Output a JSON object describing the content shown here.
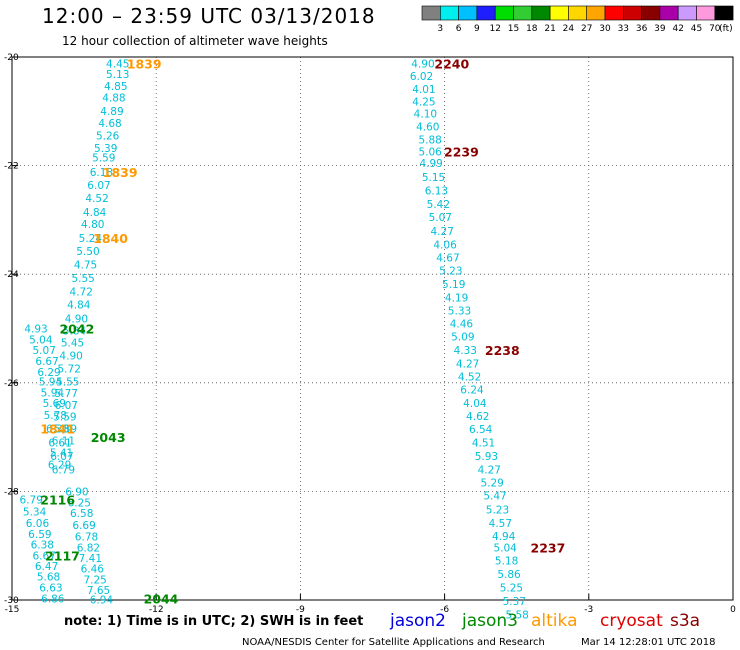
{
  "header": {
    "title": "12:00 – 23:59 UTC 03/13/2018",
    "subtitle": "12 hour collection of altimeter wave heights"
  },
  "colorbar": {
    "unit": "(ft)",
    "ticks": [
      "3",
      "6",
      "9",
      "12",
      "15",
      "18",
      "21",
      "24",
      "27",
      "30",
      "33",
      "36",
      "39",
      "42",
      "45",
      "70"
    ],
    "colors": [
      "#808080",
      "#00eeee",
      "#00bfff",
      "#1e1eff",
      "#00dd00",
      "#32cd32",
      "#008800",
      "#ffff00",
      "#ffd700",
      "#ffa500",
      "#ff0000",
      "#cc0000",
      "#880000",
      "#aa00aa",
      "#cc99ff",
      "#ff99dd",
      "#000000"
    ]
  },
  "footer": {
    "note": "note: 1) Time is in UTC; 2) SWH is in feet",
    "credit": "NOAA/NESDIS Center for Satellite Applications and Research",
    "timestamp": "Mar 14 12:28:01 UTC 2018"
  },
  "legend": [
    {
      "name": "jason2",
      "color": "#0000dd"
    },
    {
      "name": "jason3",
      "color": "#008800"
    },
    {
      "name": "altika",
      "color": "#ff9900"
    },
    {
      "name": "cryosat",
      "color": "#dd0000"
    },
    {
      "name": "s3a",
      "color": "#880000"
    }
  ],
  "chart_data": {
    "type": "scatter",
    "title": "12 hour collection of altimeter wave heights",
    "xlim": [
      -15,
      0
    ],
    "ylim": [
      -30,
      -20
    ],
    "x_ticks": [
      -15,
      -12,
      -9,
      -6,
      -3,
      0
    ],
    "y_ticks": [
      -20,
      -22,
      -24,
      -26,
      -28,
      -30
    ],
    "grid": true,
    "value_color": "#00bfd8",
    "series": [
      {
        "name": "left-track-a",
        "points": [
          {
            "x": -12.8,
            "y": -20.12,
            "v": "4.45"
          },
          {
            "x": -12.8,
            "y": -20.31,
            "v": "5.13"
          },
          {
            "x": -12.84,
            "y": -20.53,
            "v": "4.85"
          },
          {
            "x": -12.88,
            "y": -20.75,
            "v": "4.88"
          },
          {
            "x": -12.92,
            "y": -20.99,
            "v": "4.89"
          },
          {
            "x": -12.96,
            "y": -21.22,
            "v": "4.68"
          },
          {
            "x": -13.01,
            "y": -21.45,
            "v": "5.26"
          },
          {
            "x": -13.05,
            "y": -21.68,
            "v": "5.39"
          },
          {
            "x": -13.09,
            "y": -21.85,
            "v": "5.59"
          },
          {
            "x": -13.14,
            "y": -22.12,
            "v": "6.18"
          },
          {
            "x": -13.19,
            "y": -22.36,
            "v": "6.07"
          },
          {
            "x": -13.23,
            "y": -22.6,
            "v": "4.52"
          },
          {
            "x": -13.28,
            "y": -22.85,
            "v": "4.84"
          },
          {
            "x": -13.32,
            "y": -23.08,
            "v": "4.80"
          },
          {
            "x": -13.37,
            "y": -23.33,
            "v": "5.24"
          },
          {
            "x": -13.42,
            "y": -23.57,
            "v": "5.50"
          },
          {
            "x": -13.47,
            "y": -23.82,
            "v": "4.75"
          },
          {
            "x": -13.52,
            "y": -24.07,
            "v": "5.55"
          },
          {
            "x": -13.56,
            "y": -24.32,
            "v": "4.72"
          },
          {
            "x": -13.61,
            "y": -24.56,
            "v": "4.84"
          },
          {
            "x": -13.66,
            "y": -24.82,
            "v": "4.90"
          },
          {
            "x": -13.7,
            "y": -25.04,
            "v": "5.84"
          },
          {
            "x": -13.74,
            "y": -25.26,
            "v": "5.45"
          },
          {
            "x": -13.77,
            "y": -25.5,
            "v": "4.90"
          },
          {
            "x": -13.81,
            "y": -25.74,
            "v": "5.72"
          },
          {
            "x": -13.84,
            "y": -25.98,
            "v": "5.55"
          },
          {
            "x": -13.87,
            "y": -26.19,
            "v": "5.77"
          },
          {
            "x": -13.87,
            "y": -26.41,
            "v": "6.07"
          },
          {
            "x": -13.9,
            "y": -26.62,
            "v": "5.59"
          },
          {
            "x": -13.89,
            "y": -26.84,
            "v": "5.89"
          },
          {
            "x": -13.93,
            "y": -27.06,
            "v": "6.11"
          },
          {
            "x": -13.97,
            "y": -27.28,
            "v": "5.41"
          },
          {
            "x": -14.01,
            "y": -27.5,
            "v": "6.29"
          }
        ]
      },
      {
        "name": "left-track-b",
        "points": [
          {
            "x": -14.5,
            "y": -25.0,
            "v": "4.93"
          },
          {
            "x": -14.4,
            "y": -25.2,
            "v": "5.04"
          },
          {
            "x": -14.33,
            "y": -25.4,
            "v": "5.07"
          },
          {
            "x": -14.27,
            "y": -25.6,
            "v": "6.67"
          },
          {
            "x": -14.23,
            "y": -25.8,
            "v": "6.29"
          },
          {
            "x": -14.2,
            "y": -25.98,
            "v": "5.94"
          },
          {
            "x": -14.16,
            "y": -26.18,
            "v": "5.94"
          },
          {
            "x": -14.12,
            "y": -26.37,
            "v": "5.69"
          },
          {
            "x": -14.1,
            "y": -26.59,
            "v": "5.78"
          },
          {
            "x": -14.05,
            "y": -26.84,
            "v": "6.33"
          },
          {
            "x": -14.0,
            "y": -27.1,
            "v": "6.61"
          },
          {
            "x": -13.96,
            "y": -27.35,
            "v": "6.07"
          },
          {
            "x": -13.93,
            "y": -27.6,
            "v": "6.79"
          }
        ]
      },
      {
        "name": "left-track-c",
        "points": [
          {
            "x": -14.6,
            "y": -28.15,
            "v": "6.79"
          },
          {
            "x": -14.53,
            "y": -28.37,
            "v": "5.34"
          },
          {
            "x": -14.47,
            "y": -28.58,
            "v": "6.06"
          },
          {
            "x": -14.42,
            "y": -28.78,
            "v": "6.59"
          },
          {
            "x": -14.37,
            "y": -28.98,
            "v": "6.38"
          },
          {
            "x": -14.33,
            "y": -29.18,
            "v": "6.67"
          },
          {
            "x": -14.28,
            "y": -29.37,
            "v": "6.47"
          },
          {
            "x": -14.24,
            "y": -29.57,
            "v": "5.68"
          },
          {
            "x": -14.19,
            "y": -29.77,
            "v": "6.63"
          },
          {
            "x": -14.15,
            "y": -29.97,
            "v": "6.86"
          }
        ]
      },
      {
        "name": "left-track-d",
        "points": [
          {
            "x": -13.65,
            "y": -28.0,
            "v": "6.90"
          },
          {
            "x": -13.6,
            "y": -28.2,
            "v": "6.25"
          },
          {
            "x": -13.55,
            "y": -28.4,
            "v": "6.58"
          },
          {
            "x": -13.5,
            "y": -28.62,
            "v": "6.69"
          },
          {
            "x": -13.45,
            "y": -28.83,
            "v": "6.78"
          },
          {
            "x": -13.41,
            "y": -29.03,
            "v": "6.82"
          },
          {
            "x": -13.37,
            "y": -29.23,
            "v": "7.41"
          },
          {
            "x": -13.33,
            "y": -29.42,
            "v": "6.46"
          },
          {
            "x": -13.27,
            "y": -29.62,
            "v": "7.25"
          },
          {
            "x": -13.2,
            "y": -29.82,
            "v": "7.65"
          },
          {
            "x": -13.14,
            "y": -29.99,
            "v": "6.94"
          }
        ]
      },
      {
        "name": "right-track",
        "points": [
          {
            "x": -6.45,
            "y": -20.12,
            "v": "4.90"
          },
          {
            "x": -6.48,
            "y": -20.35,
            "v": "6.02"
          },
          {
            "x": -6.43,
            "y": -20.59,
            "v": "4.01"
          },
          {
            "x": -6.43,
            "y": -20.82,
            "v": "4.25"
          },
          {
            "x": -6.4,
            "y": -21.04,
            "v": "4.10"
          },
          {
            "x": -6.35,
            "y": -21.28,
            "v": "4.60"
          },
          {
            "x": -6.3,
            "y": -21.52,
            "v": "5.88"
          },
          {
            "x": -6.3,
            "y": -21.74,
            "v": "5.06"
          },
          {
            "x": -6.28,
            "y": -21.95,
            "v": "4.99"
          },
          {
            "x": -6.23,
            "y": -22.21,
            "v": "5.15"
          },
          {
            "x": -6.17,
            "y": -22.46,
            "v": "6.13"
          },
          {
            "x": -6.13,
            "y": -22.71,
            "v": "5.42"
          },
          {
            "x": -6.09,
            "y": -22.95,
            "v": "5.07"
          },
          {
            "x": -6.05,
            "y": -23.2,
            "v": "4.27"
          },
          {
            "x": -5.99,
            "y": -23.45,
            "v": "4.06"
          },
          {
            "x": -5.93,
            "y": -23.69,
            "v": "4.67"
          },
          {
            "x": -5.87,
            "y": -23.93,
            "v": "5.23"
          },
          {
            "x": -5.81,
            "y": -24.18,
            "v": "5.19"
          },
          {
            "x": -5.75,
            "y": -24.43,
            "v": "4.19"
          },
          {
            "x": -5.69,
            "y": -24.67,
            "v": "5.33"
          },
          {
            "x": -5.65,
            "y": -24.91,
            "v": "4.46"
          },
          {
            "x": -5.62,
            "y": -25.15,
            "v": "5.09"
          },
          {
            "x": -5.57,
            "y": -25.4,
            "v": "4.33"
          },
          {
            "x": -5.52,
            "y": -25.64,
            "v": "4.27"
          },
          {
            "x": -5.48,
            "y": -25.88,
            "v": "4.52"
          },
          {
            "x": -5.43,
            "y": -26.12,
            "v": "6.24"
          },
          {
            "x": -5.37,
            "y": -26.37,
            "v": "4.04"
          },
          {
            "x": -5.31,
            "y": -26.61,
            "v": "4.62"
          },
          {
            "x": -5.25,
            "y": -26.85,
            "v": "6.54"
          },
          {
            "x": -5.19,
            "y": -27.1,
            "v": "4.51"
          },
          {
            "x": -5.13,
            "y": -27.35,
            "v": "5.93"
          },
          {
            "x": -5.07,
            "y": -27.6,
            "v": "4.27"
          },
          {
            "x": -5.01,
            "y": -27.84,
            "v": "5.29"
          },
          {
            "x": -4.95,
            "y": -28.08,
            "v": "5.47"
          },
          {
            "x": -4.9,
            "y": -28.33,
            "v": "5.23"
          },
          {
            "x": -4.84,
            "y": -28.58,
            "v": "4.57"
          },
          {
            "x": -4.77,
            "y": -28.82,
            "v": "4.94"
          },
          {
            "x": -4.74,
            "y": -29.03,
            "v": "5.04"
          },
          {
            "x": -4.71,
            "y": -29.27,
            "v": "5.18"
          },
          {
            "x": -4.66,
            "y": -29.52,
            "v": "5.86"
          },
          {
            "x": -4.61,
            "y": -29.77,
            "v": "5.25"
          },
          {
            "x": -4.55,
            "y": -30.02,
            "v": "5.37"
          },
          {
            "x": -4.49,
            "y": -30.27,
            "v": "5.58"
          }
        ]
      }
    ],
    "time_labels": [
      {
        "x": -12.25,
        "y": -20.12,
        "t": "1839",
        "color": "#ff9900"
      },
      {
        "x": -12.75,
        "y": -22.12,
        "t": "1839",
        "color": "#ff9900"
      },
      {
        "x": -12.95,
        "y": -23.33,
        "t": "1840",
        "color": "#ff9900"
      },
      {
        "x": -14.05,
        "y": -26.84,
        "t": "1841",
        "color": "#ff9900"
      },
      {
        "x": -13.65,
        "y": -25.0,
        "t": "2042",
        "color": "#008800"
      },
      {
        "x": -13.0,
        "y": -27.0,
        "t": "2043",
        "color": "#008800"
      },
      {
        "x": -11.9,
        "y": -29.97,
        "t": "2044",
        "color": "#008800"
      },
      {
        "x": -14.05,
        "y": -28.15,
        "t": "2116",
        "color": "#008800"
      },
      {
        "x": -13.95,
        "y": -29.18,
        "t": "2117",
        "color": "#008800"
      },
      {
        "x": -5.85,
        "y": -20.12,
        "t": "2240",
        "color": "#880000"
      },
      {
        "x": -5.65,
        "y": -21.74,
        "t": "2239",
        "color": "#880000"
      },
      {
        "x": -4.8,
        "y": -25.4,
        "t": "2238",
        "color": "#880000"
      },
      {
        "x": -3.85,
        "y": -29.03,
        "t": "2237",
        "color": "#880000"
      }
    ]
  }
}
